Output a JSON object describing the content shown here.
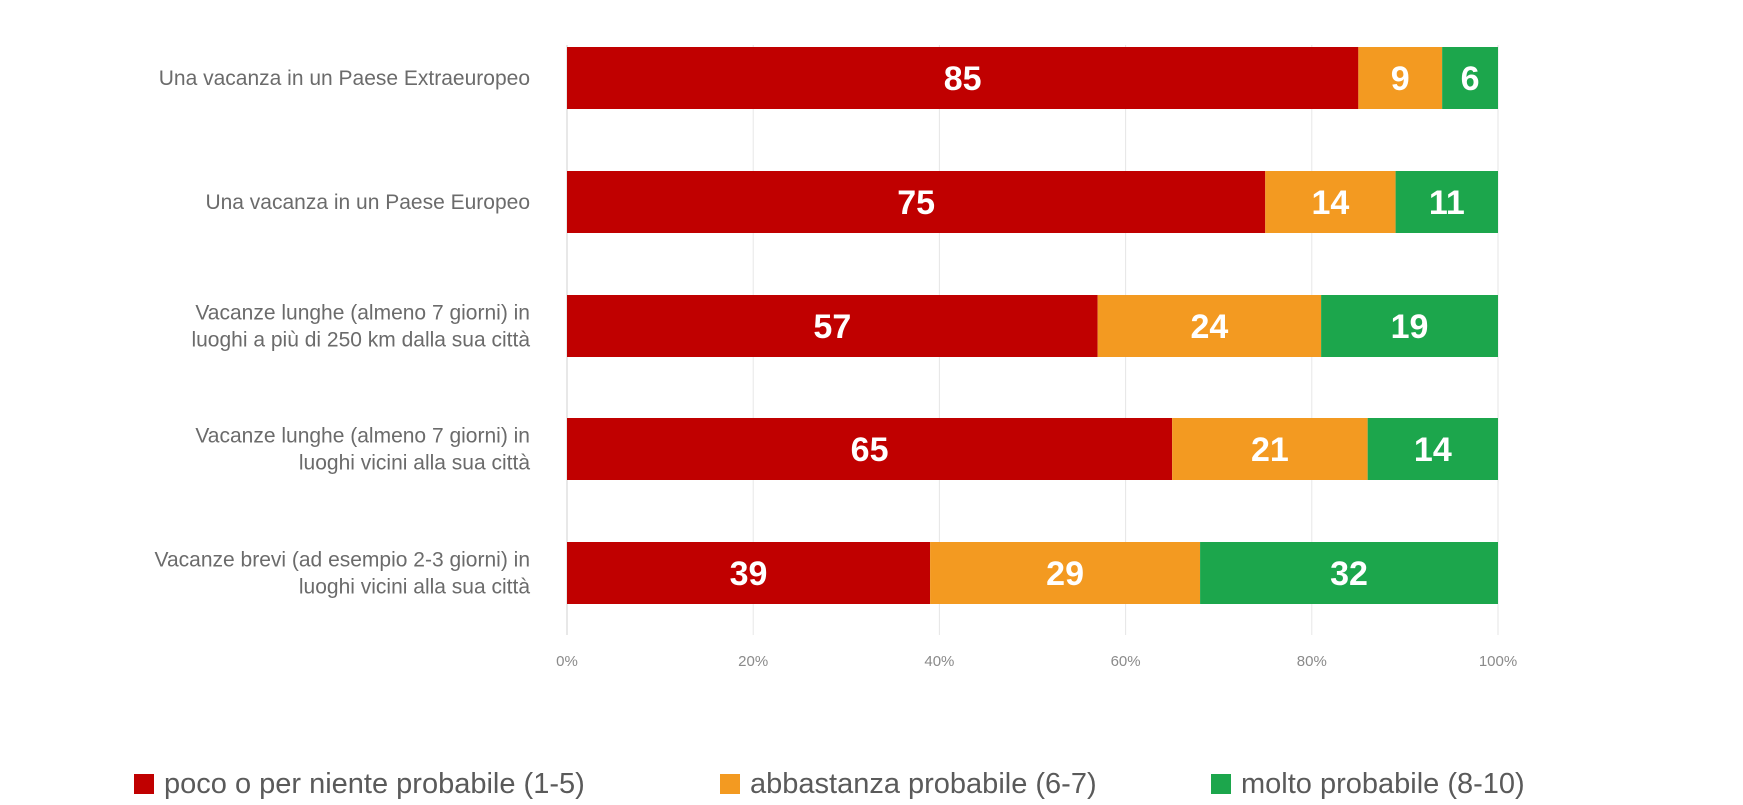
{
  "chart_data": {
    "type": "bar",
    "orientation": "horizontal",
    "stacked": true,
    "categories": [
      [
        "Una vacanza in un Paese Extraeuropeo"
      ],
      [
        "Una vacanza in un Paese Europeo"
      ],
      [
        "Vacanze lunghe (almeno 7 giorni) in",
        "luoghi a più di 250 km dalla sua città"
      ],
      [
        "Vacanze lunghe (almeno 7 giorni) in",
        "luoghi vicini alla sua città"
      ],
      [
        "Vacanze brevi (ad esempio 2-3 giorni) in",
        "luoghi vicini alla sua città"
      ]
    ],
    "series": [
      {
        "name": "poco o per niente probabile (1-5)",
        "color": "#c00000",
        "values": [
          85,
          75,
          57,
          65,
          39
        ]
      },
      {
        "name": "abbastanza probabile (6-7)",
        "color": "#f39a21",
        "values": [
          9,
          14,
          24,
          21,
          29
        ]
      },
      {
        "name": "molto probabile (8-10)",
        "color": "#1ca64c",
        "values": [
          6,
          11,
          19,
          14,
          32
        ]
      }
    ],
    "xlim": [
      0,
      100
    ],
    "xticks": [
      "0%",
      "20%",
      "40%",
      "60%",
      "80%",
      "100%"
    ],
    "grid": true,
    "legend_position": "bottom"
  }
}
